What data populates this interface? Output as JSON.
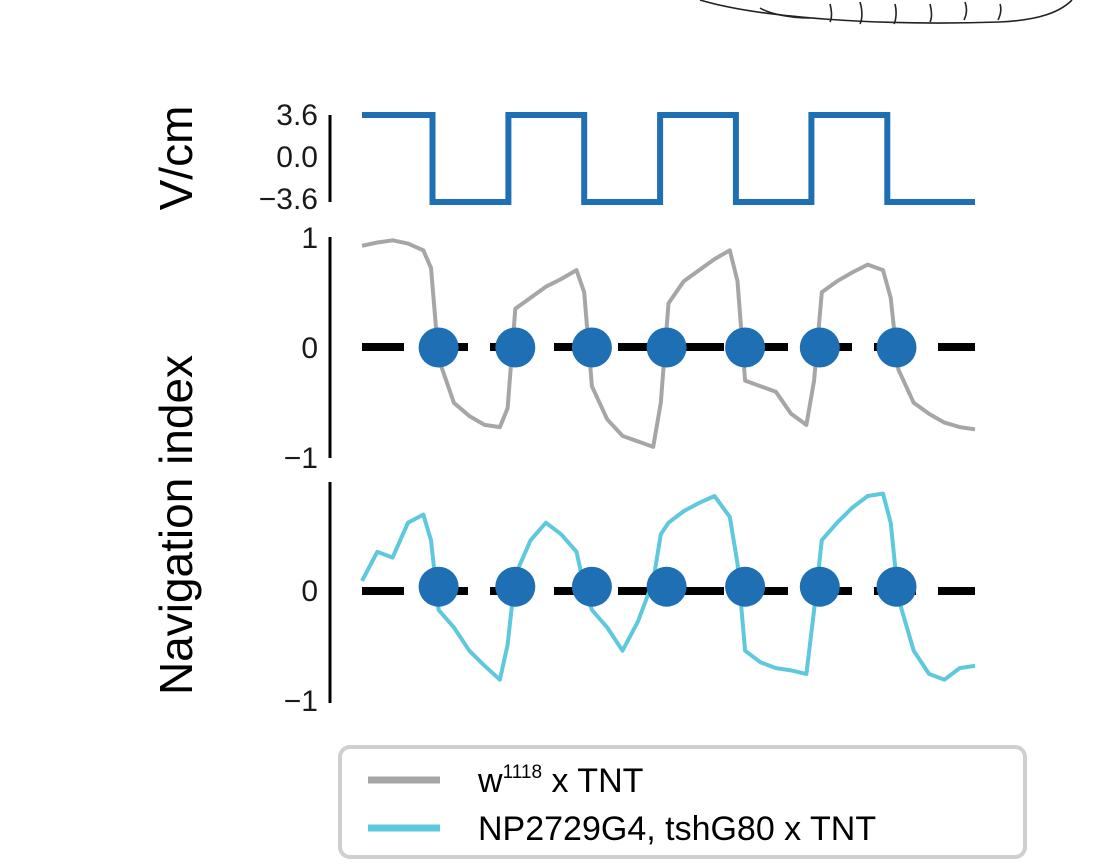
{
  "chart_data": [
    {
      "type": "line",
      "ylabel": "V/cm",
      "yticks": [
        "3.6",
        "0.0",
        "−3.6"
      ],
      "ylim": [
        -3.6,
        3.6
      ],
      "xlim": [
        0,
        160
      ],
      "series": [
        {
          "color": "#1f6fb4",
          "x": [
            0,
            18.4,
            18.4,
            38.2,
            38.2,
            58,
            58,
            77.8,
            77.8,
            97.6,
            97.6,
            117.3,
            117.3,
            137.1,
            137.1,
            160
          ],
          "values": [
            3.6,
            3.6,
            -3.6,
            -3.6,
            3.6,
            3.6,
            -3.6,
            -3.6,
            3.6,
            3.6,
            -3.6,
            -3.6,
            3.6,
            3.6,
            -3.6,
            -3.6
          ]
        }
      ]
    },
    {
      "type": "line",
      "ylabel": "Navigation index",
      "yticks": [
        "1",
        "0",
        "−1"
      ],
      "ylim": [
        -1,
        1
      ],
      "xlim": [
        0,
        160
      ],
      "series": [
        {
          "name": "w1118 x TNT",
          "color": "#a6a6a6",
          "x": [
            0,
            4,
            8,
            12,
            16,
            18,
            20,
            24,
            28,
            32,
            36,
            38,
            40,
            44,
            48,
            52,
            56,
            58,
            60,
            64,
            68,
            72,
            76,
            78,
            80,
            84,
            88,
            92,
            96,
            98,
            100,
            104,
            108,
            112,
            116,
            118,
            120,
            124,
            128,
            132,
            136,
            138,
            140,
            144,
            148,
            152,
            156,
            160
          ],
          "values": [
            0.92,
            0.95,
            0.97,
            0.94,
            0.88,
            0.72,
            -0.1,
            -0.5,
            -0.62,
            -0.7,
            -0.72,
            -0.55,
            0.35,
            0.45,
            0.55,
            0.62,
            0.7,
            0.5,
            -0.35,
            -0.65,
            -0.8,
            -0.85,
            -0.9,
            -0.5,
            0.4,
            0.6,
            0.7,
            0.8,
            0.88,
            0.6,
            -0.3,
            -0.35,
            -0.4,
            -0.6,
            -0.7,
            -0.3,
            0.5,
            0.6,
            0.68,
            0.75,
            0.7,
            0.45,
            -0.2,
            -0.5,
            -0.6,
            -0.68,
            -0.72,
            -0.74
          ]
        }
      ],
      "reference_line": 0,
      "markers": {
        "color": "#1f6fb4",
        "x": [
          20,
          40,
          60,
          79.5,
          100,
          119.5,
          139.5
        ],
        "values": [
          0,
          0,
          0,
          0,
          0,
          0,
          0
        ]
      }
    },
    {
      "type": "line",
      "ylabel": "Navigation index",
      "yticks": [
        "0",
        "−1"
      ],
      "ylim": [
        -1,
        0.9
      ],
      "xlim": [
        0,
        160
      ],
      "series": [
        {
          "name": "NP2729G4, tshG80 x TNT",
          "color": "#5ec8dd",
          "x": [
            0,
            4,
            8,
            12,
            16,
            18,
            20,
            24,
            28,
            32,
            36,
            38,
            40,
            44,
            48,
            52,
            56,
            58,
            60,
            64,
            68,
            72,
            76,
            78,
            80,
            84,
            88,
            92,
            96,
            98,
            100,
            104,
            108,
            112,
            116,
            118,
            120,
            124,
            128,
            132,
            136,
            138,
            140,
            144,
            148,
            152,
            156,
            160
          ],
          "values": [
            0.05,
            0.3,
            0.25,
            0.55,
            0.62,
            0.4,
            -0.2,
            -0.35,
            -0.55,
            -0.68,
            -0.8,
            -0.5,
            0.1,
            0.4,
            0.55,
            0.45,
            0.3,
            0.0,
            -0.2,
            -0.35,
            -0.55,
            -0.3,
            0.05,
            0.45,
            0.55,
            0.65,
            0.72,
            0.78,
            0.6,
            0.2,
            -0.55,
            -0.65,
            -0.7,
            -0.72,
            -0.75,
            -0.2,
            0.4,
            0.55,
            0.68,
            0.78,
            0.8,
            0.55,
            -0.1,
            -0.55,
            -0.75,
            -0.8,
            -0.7,
            -0.68
          ]
        }
      ],
      "reference_line": 0,
      "markers": {
        "color": "#1f6fb4",
        "x": [
          20,
          40,
          60,
          79.5,
          100,
          119.5,
          139.5
        ],
        "values": [
          0,
          0,
          0,
          0,
          0,
          0,
          0
        ]
      }
    }
  ],
  "legend": {
    "placement": "bottom",
    "entries": [
      {
        "base": "w",
        "sup": "1118",
        "rest": " x TNT",
        "color": "#a6a6a6"
      },
      {
        "base": "NP2729G4, tshG80 x TNT",
        "sup": "",
        "rest": "",
        "color": "#5ec8dd"
      }
    ]
  }
}
